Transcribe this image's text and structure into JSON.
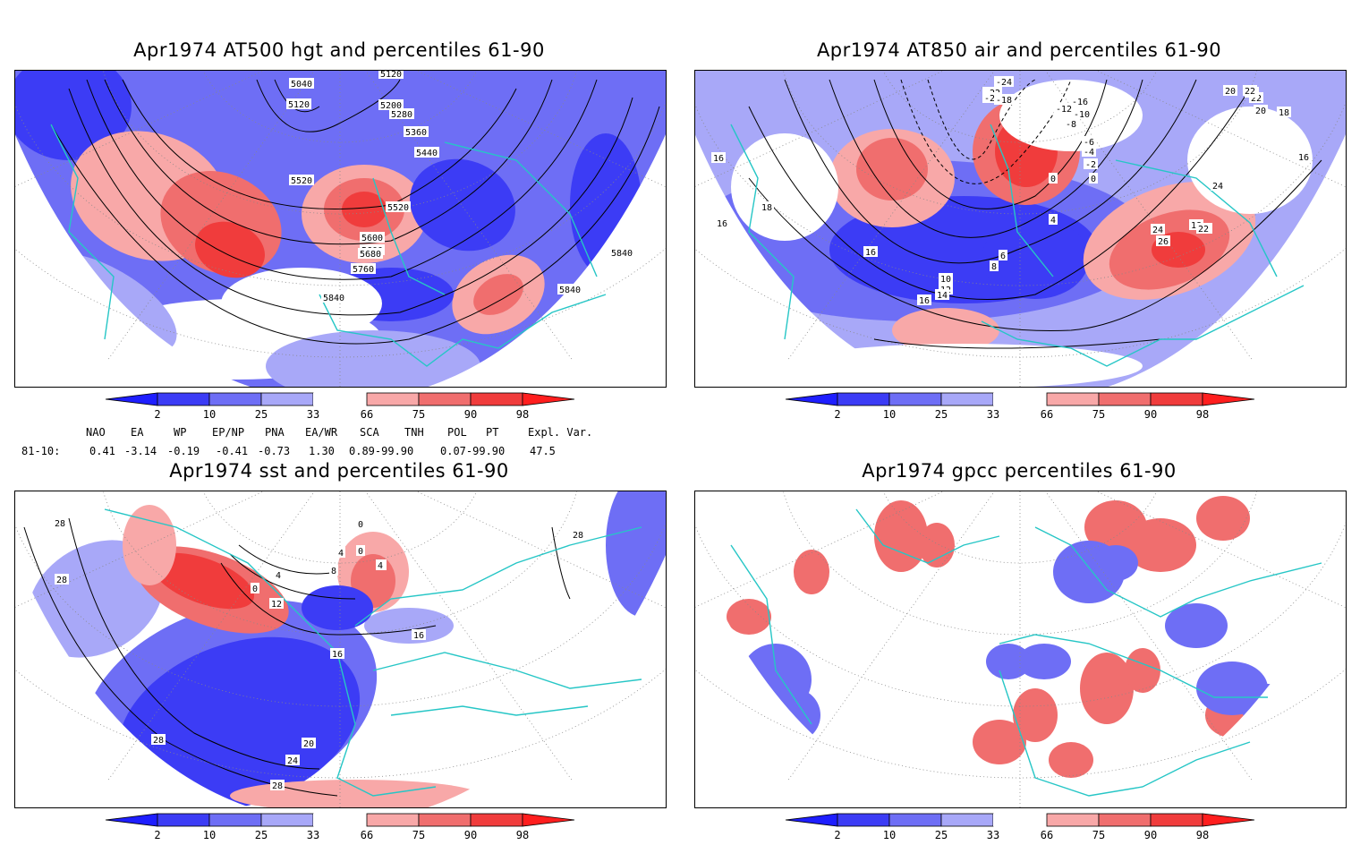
{
  "panels": [
    {
      "id": "p1",
      "title": "Apr1974 AT500 hgt and percentiles 61-90",
      "contour_labels": [
        "5040",
        "5120",
        "5120",
        "5200",
        "5280",
        "5360",
        "5440",
        "5520",
        "5520",
        "5600",
        "5600",
        "5680",
        "5760",
        "5840",
        "5840",
        "5840",
        "58"
      ]
    },
    {
      "id": "p2",
      "title": "Apr1974 AT850 air and percentiles 61-90",
      "contour_labels": [
        "-24",
        "-22",
        "-20",
        "-18",
        "-16",
        "-12",
        "-10",
        "-8",
        "-6",
        "-4",
        "-2",
        "0",
        "0",
        "4",
        "6",
        "8",
        "10",
        "12",
        "14",
        "16",
        "16",
        "16",
        "16",
        "18",
        "18",
        "18",
        "20",
        "22",
        "24",
        "26",
        "24",
        "22",
        "24",
        "22",
        "20",
        "18",
        "16"
      ]
    },
    {
      "id": "p3",
      "title": "Apr1974 sst and percentiles 61-90",
      "contour_labels": [
        "28",
        "28",
        "0",
        "0",
        "4",
        "8",
        "12",
        "16",
        "16",
        "20",
        "24",
        "28",
        "28",
        "28",
        "0",
        "4",
        "4",
        "4"
      ]
    },
    {
      "id": "p4",
      "title": "Apr1974 gpcc percentiles 61-90",
      "contour_labels": []
    }
  ],
  "colorbar": {
    "labels": [
      "2",
      "10",
      "25",
      "33",
      "66",
      "75",
      "90",
      "98"
    ],
    "colors": {
      "below2": "#1e1eff",
      "c2_10": "#3c3cf5",
      "c10_25": "#6e6ef5",
      "c25_33": "#a8a8f8",
      "c66_75": "#f8a8a8",
      "c75_90": "#f06e6e",
      "c90_98": "#f03c3c",
      "above98": "#ff1e1e"
    }
  },
  "indices": {
    "headers": [
      "NAO",
      "EA",
      "WP",
      "EP/NP",
      "PNA",
      "EA/WR",
      "SCA",
      "TNH",
      "POL",
      "PT",
      "Expl. Var."
    ],
    "row_label": "81-10:",
    "values": [
      "0.41",
      "-3.14",
      "-0.19",
      "-0.41",
      "-0.73",
      "1.30",
      "0.89-99.90",
      "0.07-99.90",
      "47.5"
    ]
  },
  "map_colors": {
    "coast": "#26c6c6",
    "contour": "#000000",
    "grid": "#888888"
  }
}
